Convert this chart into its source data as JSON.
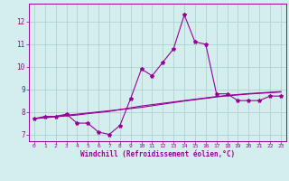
{
  "x": [
    0,
    1,
    2,
    3,
    4,
    5,
    6,
    7,
    8,
    9,
    10,
    11,
    12,
    13,
    14,
    15,
    16,
    17,
    18,
    19,
    20,
    21,
    22,
    23
  ],
  "line1": [
    7.7,
    7.8,
    7.8,
    7.9,
    7.5,
    7.5,
    7.1,
    7.0,
    7.4,
    8.6,
    9.9,
    9.6,
    10.2,
    10.8,
    12.3,
    11.1,
    11.0,
    8.8,
    8.8,
    8.5,
    8.5,
    8.5,
    8.7,
    8.7
  ],
  "line2": [
    7.7,
    7.75,
    7.8,
    7.85,
    7.9,
    7.95,
    8.0,
    8.05,
    8.1,
    8.15,
    8.2,
    8.27,
    8.34,
    8.41,
    8.48,
    8.54,
    8.6,
    8.66,
    8.71,
    8.75,
    8.79,
    8.82,
    8.85,
    8.88
  ],
  "line3": [
    7.7,
    7.74,
    7.78,
    7.82,
    7.86,
    7.92,
    7.97,
    8.02,
    8.1,
    8.18,
    8.26,
    8.32,
    8.38,
    8.44,
    8.5,
    8.56,
    8.62,
    8.68,
    8.73,
    8.77,
    8.81,
    8.84,
    8.87,
    8.9
  ],
  "line_color": "#990099",
  "bg_color": "#d4eeee",
  "grid_color": "#aacccc",
  "xlabel": "Windchill (Refroidissement éolien,°C)",
  "ylim": [
    6.7,
    12.8
  ],
  "xlim": [
    -0.5,
    23.5
  ],
  "yticks": [
    7,
    8,
    9,
    10,
    11,
    12
  ],
  "xticks": [
    0,
    1,
    2,
    3,
    4,
    5,
    6,
    7,
    8,
    9,
    10,
    11,
    12,
    13,
    14,
    15,
    16,
    17,
    18,
    19,
    20,
    21,
    22,
    23
  ]
}
